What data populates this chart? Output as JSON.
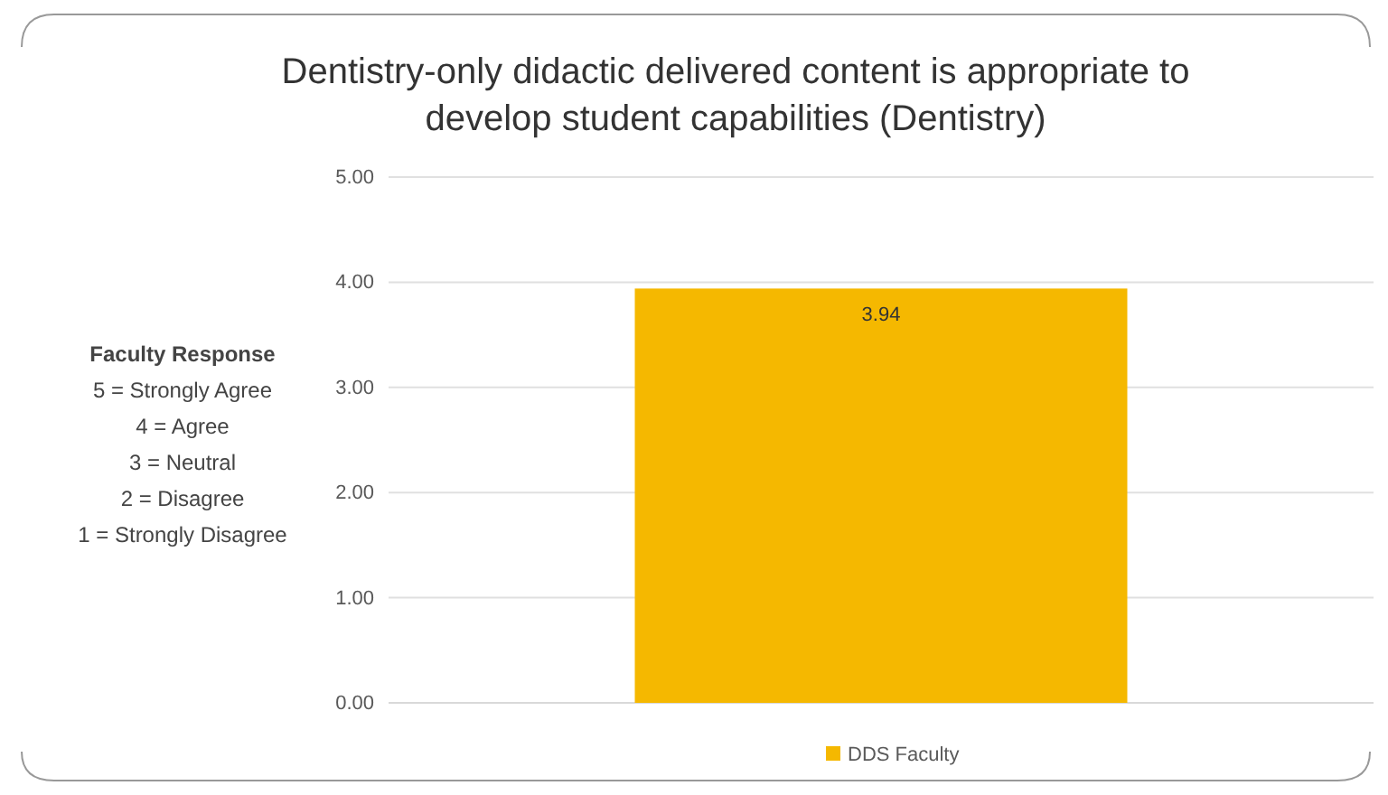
{
  "chart_data": {
    "type": "bar",
    "title": "Dentistry-only didactic delivered content is appropriate to develop student capabilities (Dentistry)",
    "categories": [
      null
    ],
    "series": [
      {
        "name": "DDS Faculty",
        "color": "#f5b800",
        "values": [
          3.94
        ]
      }
    ],
    "ylim": [
      0,
      5
    ],
    "yticks": [
      {
        "value": 0,
        "label": "0.00"
      },
      {
        "value": 1,
        "label": "1.00"
      },
      {
        "value": 2,
        "label": "2.00"
      },
      {
        "value": 3,
        "label": "3.00"
      },
      {
        "value": 4,
        "label": "4.00"
      },
      {
        "value": 5,
        "label": "5.00"
      }
    ],
    "grid": "y",
    "legend": "bottom",
    "data_labels": true,
    "annotations": [
      "Faculty Response",
      "5 = Strongly Agree",
      "4 = Agree",
      "3 = Neutral",
      "2 = Disagree",
      "1 = Strongly Disagree"
    ]
  }
}
